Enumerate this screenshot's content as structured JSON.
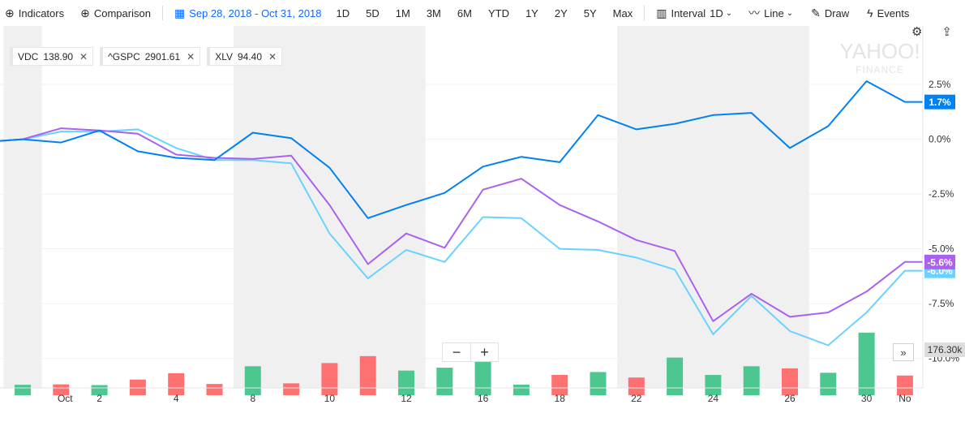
{
  "toolbar": {
    "indicators_label": "Indicators",
    "comparison_label": "Comparison",
    "date_range": "Sep 28, 2018 - Oct 31, 2018",
    "ranges": [
      "1D",
      "5D",
      "1M",
      "3M",
      "6M",
      "YTD",
      "1Y",
      "2Y",
      "5Y",
      "Max"
    ],
    "interval_label": "Interval",
    "interval_value": "1D",
    "line_label": "Line",
    "draw_label": "Draw",
    "events_label": "Events"
  },
  "watermark": {
    "line1": "YAHOO!",
    "line2": "FINANCE"
  },
  "zoom": {
    "minus": "−",
    "plus": "+"
  },
  "scroll_right_label": "»",
  "legend": [
    {
      "symbol": "VDC",
      "value": "138.90",
      "color": "#0081f2"
    },
    {
      "symbol": "^GSPC",
      "value": "2901.61",
      "color": "#6ad2ff"
    },
    {
      "symbol": "XLV",
      "value": "94.40",
      "color": "#ab61f0"
    }
  ],
  "colors": {
    "up": "#4cc790",
    "down": "#fe7171",
    "grid": "#f0f1f2",
    "band": "#f0f0f0"
  },
  "chart_data": {
    "type": "line",
    "x": [
      "Sep 28",
      "Oct 1",
      "Oct 2",
      "Oct 3",
      "Oct 4",
      "Oct 5",
      "Oct 8",
      "Oct 9",
      "Oct 10",
      "Oct 11",
      "Oct 12",
      "Oct 15",
      "Oct 16",
      "Oct 17",
      "Oct 18",
      "Oct 19",
      "Oct 22",
      "Oct 23",
      "Oct 24",
      "Oct 25",
      "Oct 26",
      "Oct 29",
      "Oct 30",
      "Oct 31"
    ],
    "x_ticks": [
      {
        "at": "Oct 1",
        "label": "Oct"
      },
      {
        "at": "Oct 2",
        "label": "2"
      },
      {
        "at": "Oct 4",
        "label": "4"
      },
      {
        "at": "Oct 8",
        "label": "8"
      },
      {
        "at": "Oct 10",
        "label": "10"
      },
      {
        "at": "Oct 12",
        "label": "12"
      },
      {
        "at": "Oct 16",
        "label": "16"
      },
      {
        "at": "Oct 18",
        "label": "18"
      },
      {
        "at": "Oct 22",
        "label": "22"
      },
      {
        "at": "Oct 24",
        "label": "24"
      },
      {
        "at": "Oct 26",
        "label": "26"
      },
      {
        "at": "Oct 30",
        "label": "30"
      },
      {
        "at": "Oct 31",
        "label": "No"
      }
    ],
    "y_ticks": [
      {
        "value": 2.5,
        "label": "2.5%"
      },
      {
        "value": 0,
        "label": "0.0%"
      },
      {
        "value": -2.5,
        "label": "-2.5%"
      },
      {
        "value": -5,
        "label": "-5.0%"
      },
      {
        "value": -7.5,
        "label": "-7.5%"
      },
      {
        "value": -10,
        "label": "-10.0%"
      }
    ],
    "ylim": [
      -10.9,
      4.5
    ],
    "series": [
      {
        "name": "VDC",
        "color": "#0081f2",
        "values": [
          0,
          -0.15,
          0.4,
          -0.55,
          -0.85,
          -0.95,
          0.3,
          0.05,
          -1.3,
          -3.6,
          -3.0,
          -2.45,
          -1.25,
          -0.8,
          -1.05,
          1.1,
          0.45,
          0.7,
          1.1,
          1.2,
          -0.4,
          0.6,
          2.65,
          1.7
        ],
        "end_label": "1.7%"
      },
      {
        "name": "^GSPC",
        "color": "#6ad2ff",
        "values": [
          0,
          0.35,
          0.35,
          0.45,
          -0.4,
          -0.95,
          -0.95,
          -1.1,
          -4.3,
          -6.35,
          -5.05,
          -5.6,
          -3.55,
          -3.6,
          -5.0,
          -5.05,
          -5.4,
          -5.95,
          -8.9,
          -7.15,
          -8.75,
          -9.4,
          -7.9,
          -6.0
        ],
        "end_label": "-6.0%"
      },
      {
        "name": "XLV",
        "color": "#ab61f0",
        "values": [
          0,
          0.5,
          0.4,
          0.25,
          -0.7,
          -0.85,
          -0.9,
          -0.75,
          -3.0,
          -5.7,
          -4.3,
          -4.95,
          -2.3,
          -1.8,
          -3.0,
          -3.75,
          -4.6,
          -5.1,
          -8.3,
          -7.05,
          -8.1,
          -7.9,
          -6.95,
          -5.6
        ],
        "end_label": "-5.6%"
      }
    ],
    "volume": {
      "values": [
        72,
        75,
        70,
        108,
        152,
        78,
        200,
        82,
        222,
        270,
        170,
        190,
        335,
        73,
        140,
        160,
        122,
        260,
        140,
        200,
        185,
        155,
        432,
        136
      ],
      "direction": [
        "up",
        "down",
        "up",
        "down",
        "down",
        "down",
        "up",
        "down",
        "down",
        "down",
        "up",
        "up",
        "up",
        "up",
        "down",
        "up",
        "down",
        "up",
        "up",
        "up",
        "down",
        "up",
        "up",
        "down"
      ],
      "last_label": "176.30k"
    }
  }
}
